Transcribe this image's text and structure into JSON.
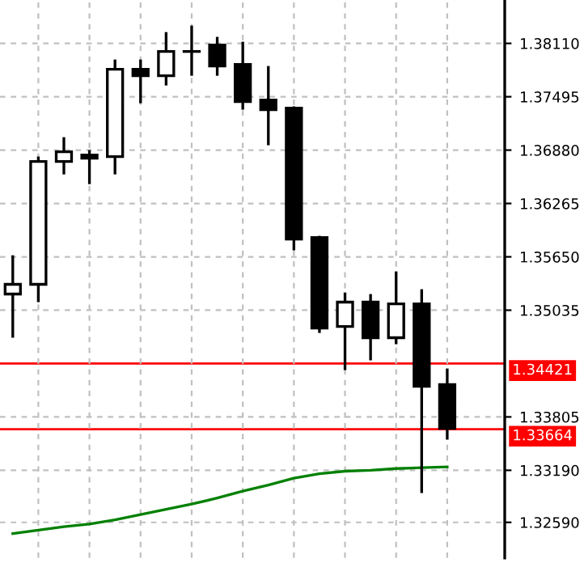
{
  "chart_data": {
    "type": "candlestick",
    "categories": [
      null,
      null,
      null,
      null,
      null,
      null,
      null,
      null,
      null,
      null,
      null,
      null,
      null,
      null,
      null,
      null,
      null,
      null
    ],
    "ohlc": [
      [
        1.35221,
        1.35668,
        1.34718,
        1.35333
      ],
      [
        1.35333,
        1.36805,
        1.35128,
        1.36749
      ],
      [
        1.36749,
        1.37029,
        1.366,
        1.36861
      ],
      [
        1.36824,
        1.3688,
        1.36488,
        1.36787
      ],
      [
        1.36805,
        1.37924,
        1.366,
        1.37812
      ],
      [
        1.37812,
        1.37924,
        1.3742,
        1.37737
      ],
      [
        1.37737,
        1.3824,
        1.37625,
        1.38017
      ],
      [
        1.38017,
        1.38315,
        1.37737,
        1.38017
      ],
      [
        1.38091,
        1.38185,
        1.37737,
        1.37849
      ],
      [
        1.37868,
        1.38129,
        1.37346,
        1.37439
      ],
      [
        1.37458,
        1.37849,
        1.36936,
        1.37346
      ],
      [
        1.37364,
        1.37383,
        1.35724,
        1.35855
      ],
      [
        1.35873,
        1.35892,
        1.34773,
        1.34829
      ],
      [
        1.34848,
        1.35239,
        1.34345,
        1.35128
      ],
      [
        1.35128,
        1.35221,
        1.34457,
        1.34718
      ],
      [
        1.34718,
        1.35482,
        1.34643,
        1.35109
      ],
      [
        1.35109,
        1.35277,
        1.32928,
        1.34158
      ],
      [
        1.34177,
        1.34363,
        1.33543,
        1.33674
      ]
    ],
    "colors": [
      "#ffffff",
      "#ffffff",
      "#ffffff",
      "#000000",
      "#ffffff",
      "#000000",
      "#ffffff",
      "#ffffff",
      "#000000",
      "#000000",
      "#000000",
      "#000000",
      "#000000",
      "#ffffff",
      "#000000",
      "#ffffff",
      "#000000",
      "#000000"
    ],
    "series": [
      {
        "type": "line",
        "color": "#008000",
        "values": [
          1.3246,
          1.325,
          1.3254,
          1.3257,
          1.3262,
          1.3268,
          1.3274,
          1.328,
          1.3287,
          1.3295,
          1.3302,
          1.331,
          1.3315,
          1.3318,
          1.3319,
          1.3321,
          1.3322,
          1.3323
        ]
      }
    ],
    "ylim": [
      1.3218,
      1.3861
    ],
    "yticks": [
      {
        "value": 1.3259,
        "label": "1.32590"
      },
      {
        "value": 1.3319,
        "label": "1.33190"
      },
      {
        "value": 1.33805,
        "label": "1.33805"
      },
      {
        "value": 1.35035,
        "label": "1.35035"
      },
      {
        "value": 1.3565,
        "label": "1.35650"
      },
      {
        "value": 1.36265,
        "label": "1.36265"
      },
      {
        "value": 1.3688,
        "label": "1.36880"
      },
      {
        "value": 1.37495,
        "label": "1.37495"
      },
      {
        "value": 1.3811,
        "label": "1.38110"
      }
    ],
    "grid": true,
    "tick_labels": "y",
    "ref_lines": [
      {
        "axis": "y",
        "value": 1.34421,
        "label": "1.34421",
        "color": "#ff0000"
      },
      {
        "axis": "y",
        "value": 1.33664,
        "label": "1.33664",
        "color": "#ff0000"
      }
    ]
  }
}
